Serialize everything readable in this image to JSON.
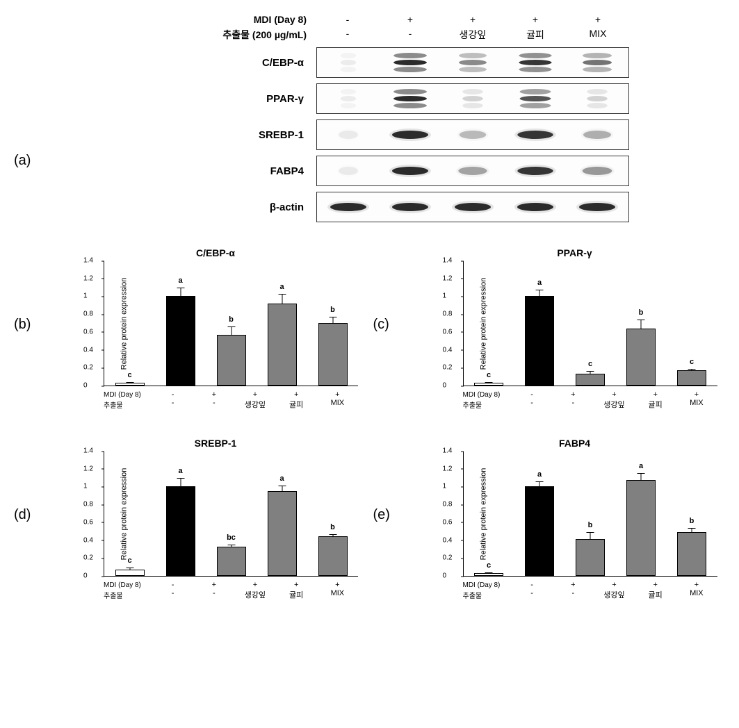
{
  "colors": {
    "bar_white": "#ffffff",
    "bar_black": "#000000",
    "bar_gray": "#808080",
    "border": "#000000",
    "band_dark": "#2b2b2b",
    "band_mid": "#5a5a5a",
    "band_light": "#9a9a9a"
  },
  "panel_labels": {
    "a": "(a)",
    "b": "(b)",
    "c": "(c)",
    "d": "(d)",
    "e": "(e)"
  },
  "blot": {
    "cond_rows": [
      {
        "label": "MDI (Day 8)",
        "cells": [
          "-",
          "+",
          "+",
          "+",
          "+"
        ]
      },
      {
        "label": "추출물 (200 µg/mL)",
        "cells": [
          "-",
          "-",
          "생강잎",
          "귤피",
          "MIX"
        ]
      }
    ],
    "proteins": [
      {
        "name": "C/EBP-α",
        "style": "multi",
        "intensity": [
          0.05,
          1.0,
          0.55,
          0.95,
          0.65
        ]
      },
      {
        "name": "PPAR-γ",
        "style": "multi",
        "intensity": [
          0.05,
          1.0,
          0.2,
          0.8,
          0.2
        ]
      },
      {
        "name": "SREBP-1",
        "style": "single",
        "intensity": [
          0.05,
          1.0,
          0.3,
          0.95,
          0.35
        ]
      },
      {
        "name": "FABP4",
        "style": "single",
        "intensity": [
          0.05,
          1.0,
          0.4,
          0.95,
          0.45
        ]
      },
      {
        "name": "β-actin",
        "style": "single",
        "intensity": [
          1.0,
          1.0,
          1.0,
          1.0,
          1.0
        ]
      }
    ]
  },
  "chart_common": {
    "ylabel": "Relative protein expression",
    "ymax": 1.4,
    "ytick_step": 0.2,
    "yticks": [
      "0",
      "0.2",
      "0.4",
      "0.6",
      "0.8",
      "1",
      "1.2",
      "1.4"
    ],
    "bar_fills": [
      "bar_white",
      "bar_black",
      "bar_gray",
      "bar_gray",
      "bar_gray"
    ],
    "xaxis_rows": [
      {
        "label": "MDI (Day 8)",
        "cells": [
          "-",
          "+",
          "+",
          "+",
          "+"
        ]
      },
      {
        "label": "추출물",
        "cells": [
          "-",
          "-",
          "생강잎",
          "귤피",
          "MIX"
        ]
      }
    ]
  },
  "charts": {
    "b": {
      "title": "C/EBP-α",
      "values": [
        0.03,
        1.0,
        0.57,
        0.92,
        0.7
      ],
      "err": [
        0.01,
        0.1,
        0.09,
        0.11,
        0.07
      ],
      "sig": [
        "c",
        "a",
        "b",
        "a",
        "b"
      ]
    },
    "c": {
      "title": "PPAR-γ",
      "values": [
        0.03,
        1.0,
        0.13,
        0.64,
        0.17
      ],
      "err": [
        0.01,
        0.07,
        0.03,
        0.1,
        0.02
      ],
      "sig": [
        "c",
        "a",
        "c",
        "b",
        "c"
      ]
    },
    "d": {
      "title": "SREBP-1",
      "values": [
        0.07,
        1.0,
        0.33,
        0.95,
        0.44
      ],
      "err": [
        0.02,
        0.1,
        0.02,
        0.06,
        0.03
      ],
      "sig": [
        "c",
        "a",
        "bc",
        "a",
        "b"
      ]
    },
    "e": {
      "title": "FABP4",
      "values": [
        0.03,
        1.0,
        0.41,
        1.07,
        0.49
      ],
      "err": [
        0.01,
        0.06,
        0.08,
        0.08,
        0.05
      ],
      "sig": [
        "c",
        "a",
        "b",
        "a",
        "b"
      ]
    }
  }
}
